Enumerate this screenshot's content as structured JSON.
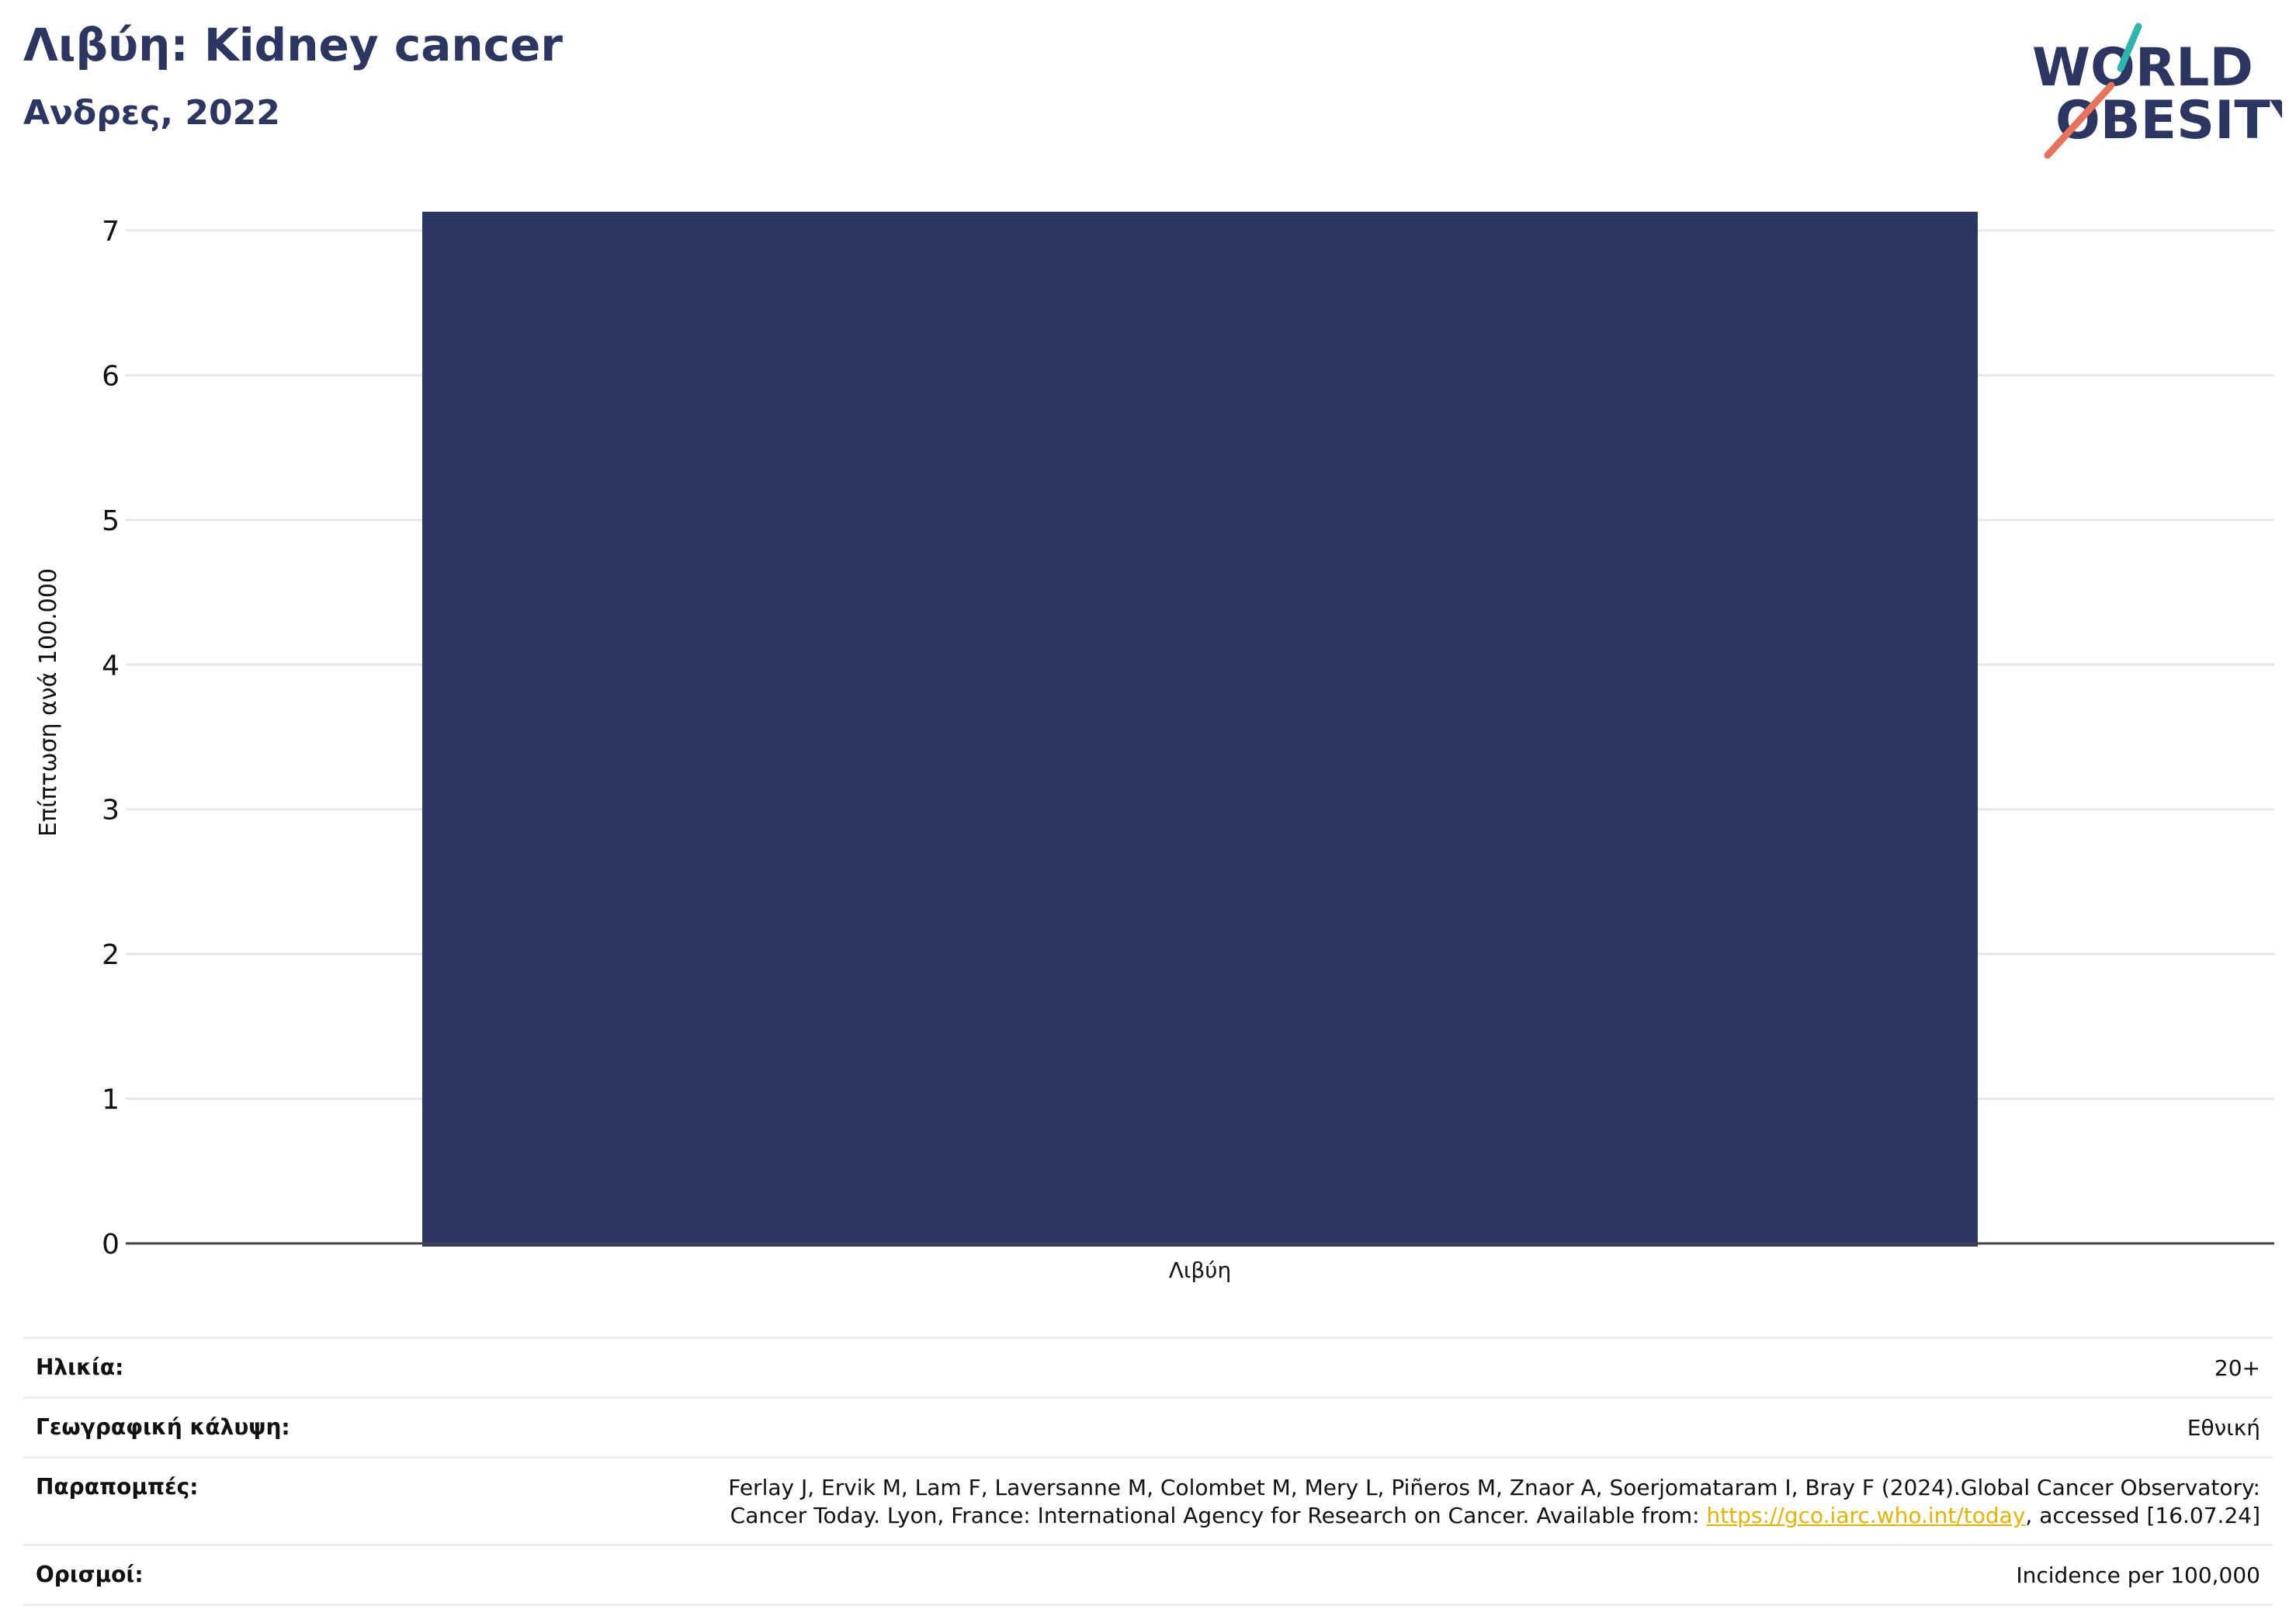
{
  "header": {
    "title": "Λιβύη: Kidney cancer",
    "subtitle": "Ανδρες, 2022",
    "logo_word1": "WORLD",
    "logo_word2": "OBESITY"
  },
  "chart_data": {
    "type": "bar",
    "categories": [
      "Λιβύη"
    ],
    "values": [
      7.13
    ],
    "ylabel": "Επίπτωση ανά 100.000",
    "xlabel": "",
    "ylim": [
      0,
      7
    ],
    "yticks": [
      0,
      1,
      2,
      3,
      4,
      5,
      6,
      7
    ],
    "grid": true,
    "bar_color": "#2b3662"
  },
  "info_table": {
    "age_label": "Ηλικία:",
    "age_value": "20+",
    "coverage_label": "Γεωγραφική κάλυψη:",
    "coverage_value": "Εθνική",
    "refs_label": "Παραπομπές:",
    "refs_line1": "Ferlay J, Ervik M, Lam F, Laversanne M, Colombet M, Mery L, Piñeros M, Znaor A, Soerjomataram I, Bray F (2024).Global Cancer Observatory:",
    "refs_line2_pre": "Cancer Today. Lyon, France: International Agency for Research on Cancer. Available from: ",
    "refs_link": "https://gco.iarc.who.int/today",
    "refs_line2_post": ", accessed [16.07.24]",
    "defs_label": "Ορισμοί:",
    "defs_value": "Incidence per 100,000"
  },
  "colors": {
    "navy": "#2b3662",
    "teal": "#2bb5ad",
    "coral": "#e8735a",
    "link": "#e8b200"
  }
}
